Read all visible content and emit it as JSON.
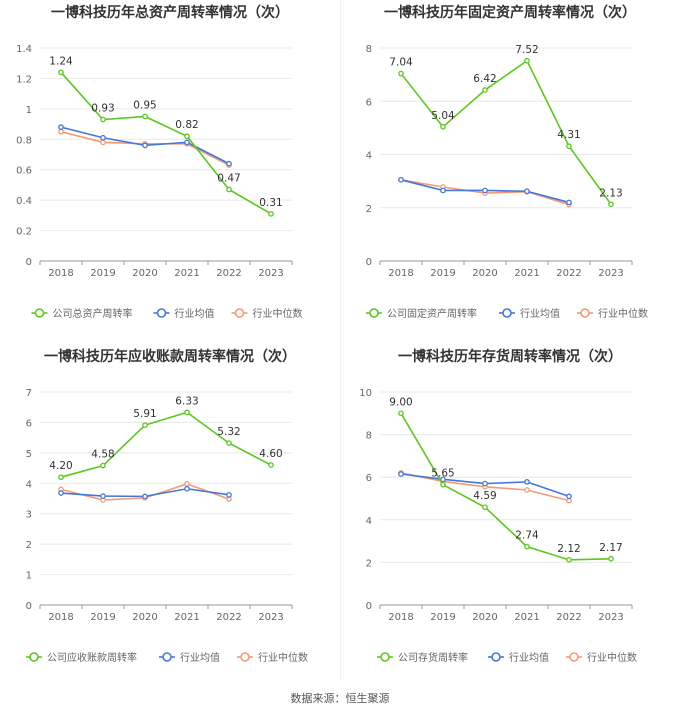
{
  "source": "数据来源：恒生聚源",
  "colors": {
    "company": "#5ac81d",
    "industry_avg": "#4477dd",
    "industry_median": "#f59a73",
    "grid": "#e8e8e8",
    "axis_text": "#666666"
  },
  "chart_data": [
    {
      "type": "line",
      "title": "一博科技历年总资产周转率情况（次）",
      "categories": [
        "2018",
        "2019",
        "2020",
        "2021",
        "2022",
        "2023"
      ],
      "ylim": [
        0,
        1.4
      ],
      "yticks": [
        "0",
        "0.2",
        "0.4",
        "0.6",
        "0.8",
        "1",
        "1.2",
        "1.4"
      ],
      "series": [
        {
          "name": "公司总资产周转率",
          "values": [
            1.24,
            0.93,
            0.95,
            0.82,
            0.47,
            0.31
          ],
          "labels": [
            "1.24",
            "0.93",
            "0.95",
            "0.82",
            "0.47",
            "0.31"
          ]
        },
        {
          "name": "行业均值",
          "values": [
            0.88,
            0.81,
            0.76,
            0.78,
            0.64,
            null
          ]
        },
        {
          "name": "行业中位数",
          "values": [
            0.85,
            0.78,
            0.77,
            0.77,
            0.63,
            null
          ]
        }
      ]
    },
    {
      "type": "line",
      "title": "一博科技历年固定资产周转率情况（次）",
      "categories": [
        "2018",
        "2019",
        "2020",
        "2021",
        "2022",
        "2023"
      ],
      "ylim": [
        0,
        8
      ],
      "yticks": [
        "0",
        "2",
        "4",
        "6",
        "8"
      ],
      "series": [
        {
          "name": "公司固定资产周转率",
          "values": [
            7.04,
            5.04,
            6.42,
            7.52,
            4.31,
            2.13
          ],
          "labels": [
            "7.04",
            "5.04",
            "6.42",
            "7.52",
            "4.31",
            "2.13"
          ]
        },
        {
          "name": "行业均值",
          "values": [
            3.05,
            2.65,
            2.65,
            2.62,
            2.2,
            null
          ]
        },
        {
          "name": "行业中位数",
          "values": [
            3.05,
            2.78,
            2.55,
            2.6,
            2.12,
            null
          ]
        }
      ]
    },
    {
      "type": "line",
      "title": "一博科技历年应收账款周转率情况（次）",
      "categories": [
        "2018",
        "2019",
        "2020",
        "2021",
        "2022",
        "2023"
      ],
      "ylim": [
        0,
        7
      ],
      "yticks": [
        "0",
        "1",
        "2",
        "3",
        "4",
        "5",
        "6",
        "7"
      ],
      "series": [
        {
          "name": "公司应收账款周转率",
          "values": [
            4.2,
            4.58,
            5.91,
            6.33,
            5.32,
            4.6
          ],
          "labels": [
            "4.20",
            "4.58",
            "5.91",
            "6.33",
            "5.32",
            "4.60"
          ]
        },
        {
          "name": "行业均值",
          "values": [
            3.68,
            3.58,
            3.57,
            3.82,
            3.62,
            null
          ]
        },
        {
          "name": "行业中位数",
          "values": [
            3.8,
            3.45,
            3.52,
            3.98,
            3.48,
            null
          ]
        }
      ]
    },
    {
      "type": "line",
      "title": "一博科技历年存货周转率情况（次）",
      "categories": [
        "2018",
        "2019",
        "2020",
        "2021",
        "2022",
        "2023"
      ],
      "ylim": [
        0,
        10
      ],
      "yticks": [
        "0",
        "2",
        "4",
        "6",
        "8",
        "10"
      ],
      "series": [
        {
          "name": "公司存货周转率",
          "values": [
            9.0,
            5.65,
            4.59,
            2.74,
            2.12,
            2.17
          ],
          "labels": [
            "9.00",
            "5.65",
            "4.59",
            "2.74",
            "2.12",
            "2.17"
          ]
        },
        {
          "name": "行业均值",
          "values": [
            6.15,
            5.9,
            5.7,
            5.78,
            5.1,
            null
          ]
        },
        {
          "name": "行业中位数",
          "values": [
            6.2,
            5.8,
            5.55,
            5.4,
            4.9,
            null
          ]
        }
      ]
    }
  ]
}
